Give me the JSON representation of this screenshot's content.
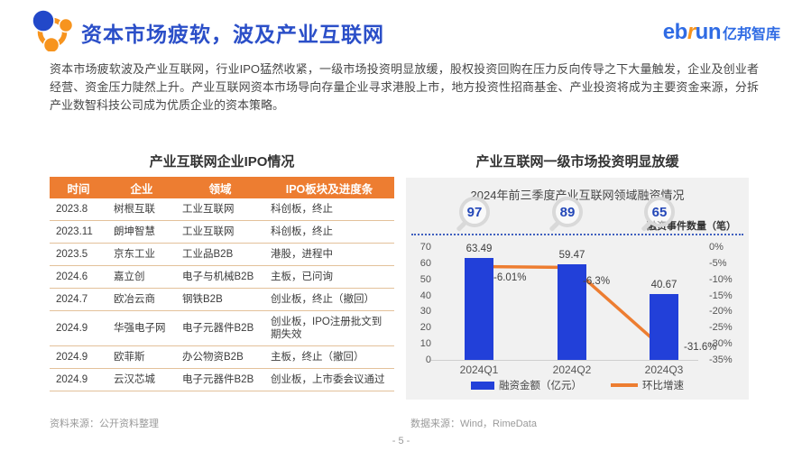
{
  "header": {
    "title": "资本市场疲软，波及产业互联网",
    "logo": {
      "en_pre": "eb",
      "en_mid": "r",
      "en_post": "un",
      "cn": "亿邦智库"
    }
  },
  "intro": "资本市场疲软波及产业互联网，行业IPO猛然收紧，一级市场投资明显放缓，股权投资回购在压力反向传导之下大量触发，企业及创业者经营、资金压力陡然上升。产业互联网资本市场导向存量企业寻求港股上市，地方投资性招商基金、产业投资将成为主要资金来源，分拆产业数智科技公司成为优质企业的资本策略。",
  "table_section": {
    "title": "产业互联网企业IPO情况",
    "columns": [
      "时间",
      "企业",
      "领域",
      "IPO板块及进度条"
    ],
    "rows": [
      [
        "2023.8",
        "树根互联",
        "工业互联网",
        "科创板，终止"
      ],
      [
        "2023.11",
        "朗坤智慧",
        "工业互联网",
        "科创板，终止"
      ],
      [
        "2023.5",
        "京东工业",
        "工业品B2B",
        "港股，进程中"
      ],
      [
        "2024.6",
        "嘉立创",
        "电子与机械B2B",
        "主板，已问询"
      ],
      [
        "2024.7",
        "欧冶云商",
        "钢铁B2B",
        "创业板，终止（撤回）"
      ],
      [
        "2024.9",
        "华强电子网",
        "电子元器件B2B",
        "创业板，IPO注册批文到期失效"
      ],
      [
        "2024.9",
        "欧菲斯",
        "办公物资B2B",
        "主板，终止（撤回）"
      ],
      [
        "2024.9",
        "云汉芯城",
        "电子元器件B2B",
        "创业板，上市委会议通过"
      ]
    ],
    "source": "资料来源：公开资料整理"
  },
  "chart_section": {
    "title": "产业互联网一级市场投资明显放缓",
    "source": "数据来源：Wind，RimeData"
  },
  "chart_data": {
    "type": "bar",
    "title": "2024年前三季度产业互联网领域融资情况",
    "categories": [
      "2024Q1",
      "2024Q2",
      "2024Q3"
    ],
    "series": [
      {
        "name": "融资金额（亿元）",
        "type": "bar",
        "values": [
          63.49,
          59.47,
          40.67
        ],
        "color": "#2240D9"
      },
      {
        "name": "环比增速",
        "type": "line",
        "values": [
          -6.01,
          -6.3,
          -31.6
        ],
        "labels": [
          "-6.01%",
          "-6.3%",
          "-31.6%"
        ],
        "color": "#ED7D31"
      }
    ],
    "event_counts": {
      "label": "融资事件数量（笔）",
      "values": [
        97,
        89,
        65
      ]
    },
    "left_axis": {
      "ticks": [
        "70",
        "60",
        "50",
        "40",
        "30",
        "20",
        "10",
        "0"
      ],
      "max": 70,
      "min": 0
    },
    "right_axis": {
      "ticks": [
        "0%",
        "-5%",
        "-10%",
        "-15%",
        "-20%",
        "-25%",
        "-30%",
        "-35%"
      ],
      "max": 0,
      "min": -35
    },
    "legend_position": "bottom",
    "grid": false
  },
  "footer": {
    "page": "- 5 -"
  }
}
